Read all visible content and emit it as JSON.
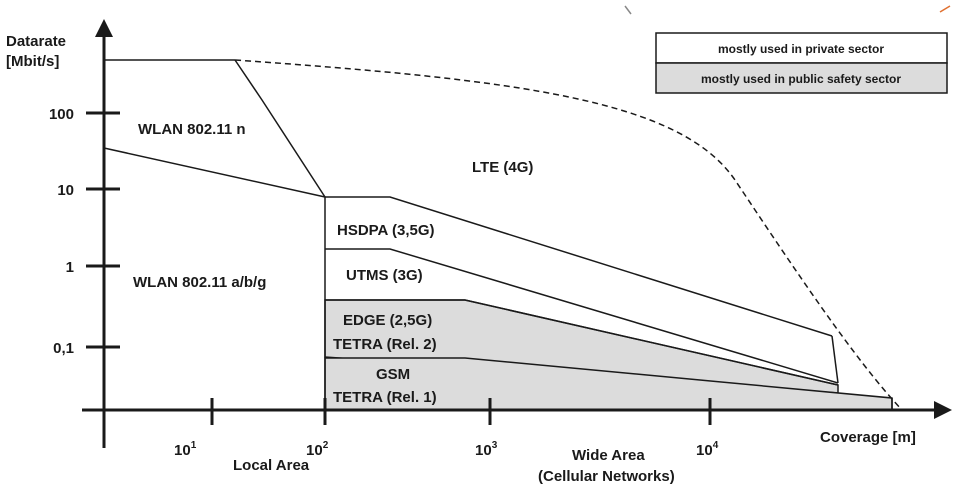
{
  "axes": {
    "y_title_line1": "Datarate",
    "y_title_line2": "[Mbit/s]",
    "x_title": "Coverage [m]",
    "y_ticks": [
      "100",
      "10",
      "1",
      "0,1"
    ],
    "x_ticks": [
      {
        "base": "10",
        "exp": "1"
      },
      {
        "base": "10",
        "exp": "2"
      },
      {
        "base": "10",
        "exp": "3"
      },
      {
        "base": "10",
        "exp": "4"
      }
    ],
    "x_regions": {
      "local": "Local Area",
      "wide_line1": "Wide Area",
      "wide_line2": "(Cellular Networks)"
    }
  },
  "legend": {
    "private": "mostly used in private sector",
    "public": "mostly used in public safety sector",
    "private_color": "#ffffff",
    "public_color": "#dcdcdc"
  },
  "regions": {
    "wlan_n": "WLAN 802.11 n",
    "wlan_abg": "WLAN 802.11 a/b/g",
    "lte": "LTE (4G)",
    "hsdpa": "HSDPA (3,5G)",
    "umts": "UTMS (3G)",
    "edge": "EDGE (2,5G)",
    "tetra2": "TETRA (Rel. 2)",
    "gsm": "GSM",
    "tetra1": "TETRA (Rel. 1)"
  },
  "colors": {
    "line": "#1a1a1a",
    "public_fill": "#dcdcdc"
  }
}
